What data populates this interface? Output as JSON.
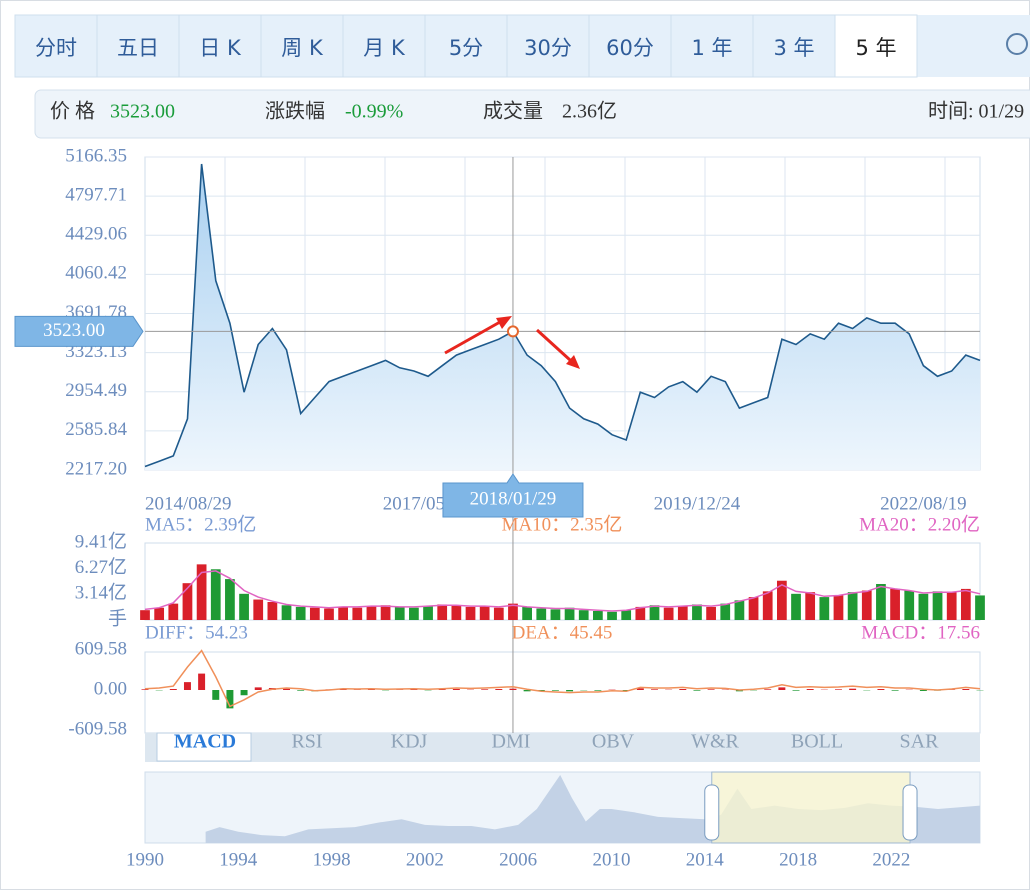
{
  "tabs": [
    "分时",
    "五日",
    "日 K",
    "周 K",
    "月 K",
    "5分",
    "30分",
    "60分",
    "1 年",
    "3 年",
    "5 年"
  ],
  "active_tab": 10,
  "info": {
    "price_label": "价 格",
    "price": "3523.00",
    "change_label": "涨跌幅",
    "change": "-0.99%",
    "volume_label": "成交量",
    "volume": "2.36亿",
    "time": "时间: 01/29"
  },
  "indicators": [
    "MACD",
    "RSI",
    "KDJ",
    "DMI",
    "OBV",
    "W&R",
    "BOLL",
    "SAR"
  ],
  "active_indicator": 0,
  "chart_data": [
    {
      "type": "line",
      "color": "#1e5a8c",
      "categories": [
        "2014/08/29",
        null,
        null,
        null,
        null,
        null,
        null,
        null,
        null,
        null,
        null,
        null,
        null,
        null,
        null,
        null,
        null,
        null,
        null,
        "2017/05",
        null,
        null,
        null,
        null,
        null,
        null,
        "2018/01/29",
        null,
        null,
        null,
        null,
        null,
        null,
        null,
        null,
        null,
        null,
        null,
        null,
        "2019/12/24",
        null,
        null,
        null,
        null,
        null,
        null,
        null,
        null,
        null,
        null,
        null,
        null,
        null,
        null,
        null,
        "2022/08/19",
        null,
        null,
        null,
        null
      ],
      "values": [
        2250,
        2300,
        2350,
        2700,
        5100,
        4000,
        3600,
        2950,
        3400,
        3550,
        3350,
        2750,
        2900,
        3050,
        3100,
        3150,
        3200,
        3250,
        3180,
        3150,
        3100,
        3200,
        3300,
        3350,
        3400,
        3450,
        3523,
        3300,
        3200,
        3050,
        2800,
        2700,
        2650,
        2550,
        2500,
        2950,
        2900,
        3000,
        3050,
        2950,
        3100,
        3050,
        2800,
        2850,
        2900,
        3450,
        3400,
        3500,
        3450,
        3600,
        3550,
        3650,
        3600,
        3600,
        3500,
        3200,
        3100,
        3150,
        3300,
        3250
      ],
      "ylim": [
        2217.2,
        5166.35
      ],
      "yticks": [
        {
          "value": 2217.2,
          "label": "2217.20"
        },
        2585.84,
        2954.49,
        3323.13,
        3691.78,
        4060.42,
        4429.06,
        4797.71,
        5166.35
      ],
      "grid": true,
      "crosshair": {
        "index": 26,
        "value": 3523,
        "label": "3523.00"
      }
    },
    {
      "type": "bar",
      "up_color": "#d9202a",
      "down_color": "#1f9a34",
      "legend": [
        "MA5：2.39亿",
        "MA10：2.35亿",
        "MA20：2.20亿"
      ],
      "legend_colors": [
        "#7a9bd3",
        "#f0905a",
        "#e064c2"
      ],
      "values": [
        1.2,
        1.5,
        2.0,
        4.5,
        6.8,
        6.2,
        5.0,
        3.2,
        2.5,
        2.2,
        1.8,
        1.6,
        1.5,
        1.4,
        1.6,
        1.5,
        1.7,
        1.8,
        1.6,
        1.5,
        1.7,
        1.9,
        1.8,
        1.6,
        1.7,
        1.5,
        2.0,
        1.6,
        1.4,
        1.3,
        1.5,
        1.2,
        1.1,
        1.0,
        1.2,
        1.6,
        1.8,
        1.5,
        1.7,
        1.9,
        1.6,
        2.0,
        2.4,
        2.8,
        3.5,
        4.8,
        3.2,
        3.4,
        2.8,
        3.0,
        3.4,
        3.6,
        4.4,
        3.8,
        3.6,
        3.2,
        3.5,
        3.4,
        3.8,
        3.0
      ],
      "line": {
        "color": "#e064c2",
        "values": [
          1.3,
          1.5,
          2.1,
          3.9,
          5.8,
          6.0,
          5.1,
          3.6,
          2.8,
          2.3,
          1.9,
          1.7,
          1.6,
          1.5,
          1.6,
          1.6,
          1.7,
          1.7,
          1.6,
          1.6,
          1.7,
          1.8,
          1.8,
          1.7,
          1.7,
          1.6,
          1.8,
          1.6,
          1.5,
          1.4,
          1.4,
          1.3,
          1.2,
          1.1,
          1.2,
          1.5,
          1.7,
          1.6,
          1.7,
          1.8,
          1.7,
          1.9,
          2.3,
          2.7,
          3.3,
          4.3,
          3.5,
          3.3,
          2.9,
          3.0,
          3.3,
          3.5,
          4.1,
          3.8,
          3.6,
          3.3,
          3.4,
          3.4,
          3.6,
          3.2
        ]
      },
      "ylim": [
        0,
        9.41
      ],
      "yticks": [
        {
          "value": 0,
          "label": "手"
        },
        {
          "value": 3.14,
          "label": "3.14亿"
        },
        {
          "value": 6.27,
          "label": "6.27亿"
        },
        {
          "value": 9.41,
          "label": "9.41亿"
        }
      ]
    },
    {
      "type": "macd",
      "up_color": "#d9202a",
      "down_color": "#1f9a34",
      "legend": [
        "DIFF：54.23",
        "DEA：45.45",
        "MACD：17.56"
      ],
      "legend_colors": [
        "#7a9bd3",
        "#f0905a",
        "#e064c2"
      ],
      "values": [
        10,
        -5,
        15,
        120,
        250,
        -150,
        -280,
        -80,
        40,
        30,
        20,
        -10,
        -20,
        10,
        15,
        5,
        10,
        -5,
        5,
        10,
        -5,
        10,
        15,
        5,
        10,
        15,
        20,
        -20,
        -15,
        -10,
        -20,
        -5,
        -10,
        5,
        -10,
        25,
        10,
        5,
        15,
        -10,
        10,
        5,
        -20,
        -5,
        10,
        40,
        -10,
        15,
        5,
        10,
        20,
        -5,
        15,
        -10,
        5,
        -15,
        -10,
        5,
        15,
        -5
      ],
      "diff": {
        "color": "#f0905a",
        "values": [
          20,
          30,
          60,
          350,
          600,
          200,
          -250,
          -150,
          -30,
          10,
          30,
          20,
          -10,
          0,
          20,
          15,
          20,
          10,
          15,
          20,
          10,
          20,
          30,
          25,
          30,
          40,
          50,
          10,
          -20,
          -30,
          -40,
          -30,
          -30,
          -10,
          -20,
          40,
          30,
          30,
          40,
          20,
          30,
          25,
          0,
          10,
          30,
          80,
          40,
          50,
          40,
          45,
          60,
          40,
          50,
          30,
          30,
          10,
          0,
          15,
          40,
          20
        ]
      },
      "ylim": [
        -609.58,
        609.58
      ],
      "yticks": [
        -609.58,
        {
          "value": 0,
          "label": "0.00"
        },
        609.58
      ]
    },
    {
      "type": "area",
      "color": "#c3d2e6",
      "x": [
        1992.6,
        1993.2,
        1994,
        1995,
        1996,
        1997,
        1998,
        1999,
        2000,
        2001,
        2002,
        2003,
        2004,
        2005,
        2006,
        2006.8,
        2007.3,
        2007.8,
        2008.3,
        2008.9,
        2009.5,
        2010,
        2011,
        2012,
        2013,
        2014,
        2014.7,
        2015.4,
        2016,
        2017,
        2018,
        2019,
        2020,
        2021,
        2022,
        2023,
        2024,
        2025.8
      ],
      "values": [
        1000,
        1400,
        1000,
        700,
        600,
        1200,
        1300,
        1400,
        1800,
        2100,
        1600,
        1500,
        1500,
        1200,
        1600,
        3000,
        4500,
        6000,
        4000,
        1900,
        3000,
        3000,
        2700,
        2300,
        2200,
        2100,
        2500,
        4800,
        3000,
        3300,
        3000,
        2900,
        3100,
        3500,
        3300,
        3200,
        3000,
        3300
      ],
      "xlim": [
        1990,
        2025.8
      ],
      "xticks": [
        1990,
        1994,
        1998,
        2002,
        2006,
        2010,
        2014,
        2018,
        2022
      ],
      "selection": [
        2014.3,
        2022.8
      ]
    }
  ]
}
